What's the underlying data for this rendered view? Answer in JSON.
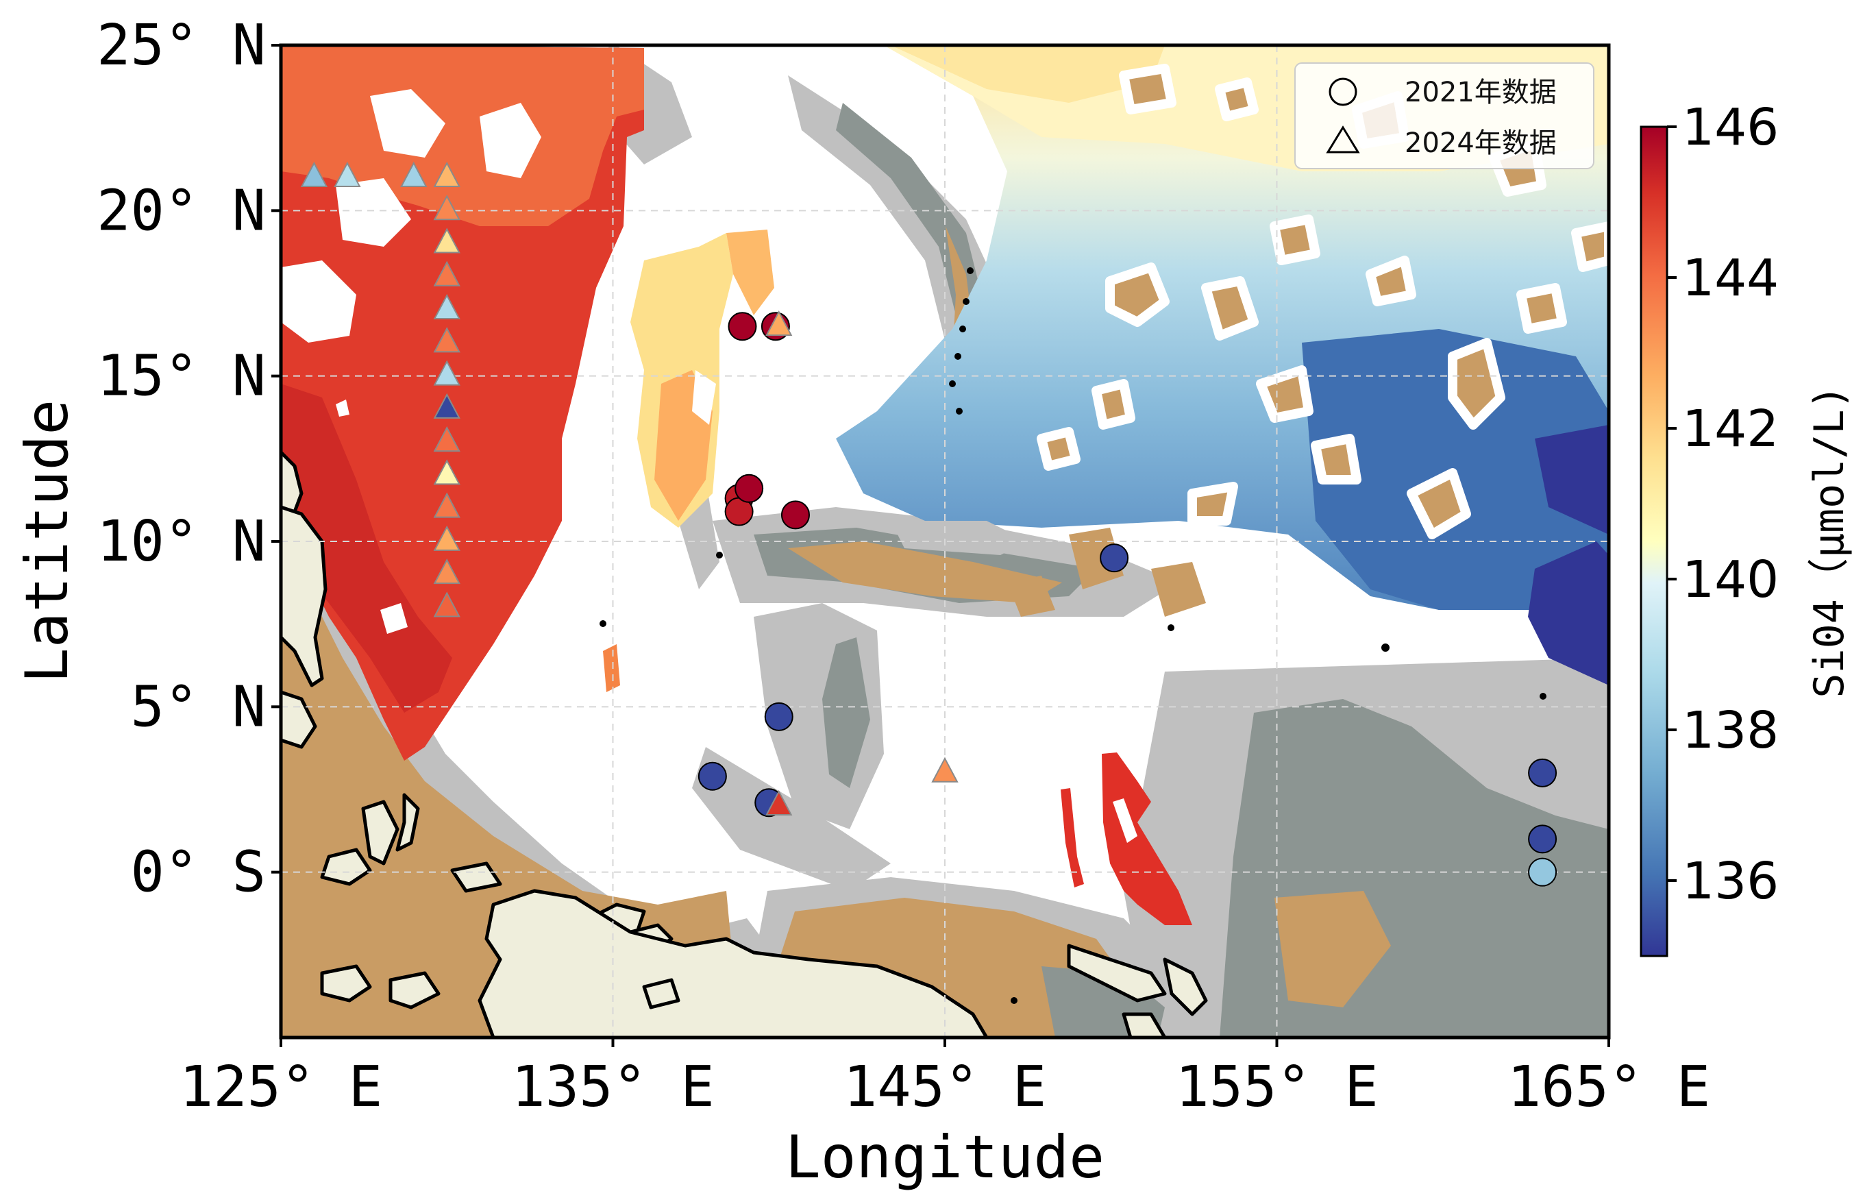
{
  "chart_data": {
    "type": "scatter",
    "xlabel": "Longitude",
    "ylabel": "Latitude",
    "xlim": [
      125,
      165
    ],
    "ylim": [
      -5,
      25
    ],
    "x_ticks": [
      {
        "value": 125,
        "label": "125° E"
      },
      {
        "value": 135,
        "label": "135° E"
      },
      {
        "value": 145,
        "label": "145° E"
      },
      {
        "value": 155,
        "label": "155° E"
      },
      {
        "value": 165,
        "label": "165° E"
      }
    ],
    "y_ticks": [
      {
        "value": 25,
        "label": "25° N"
      },
      {
        "value": 20,
        "label": "20° N"
      },
      {
        "value": 15,
        "label": "15° N"
      },
      {
        "value": 10,
        "label": "10° N"
      },
      {
        "value": 5,
        "label": "5° N"
      },
      {
        "value": 0,
        "label": "0° S"
      }
    ],
    "grid": true,
    "colorbar": {
      "label": "Si04（μmol/L)",
      "range": [
        135,
        146
      ],
      "ticks": [
        136,
        138,
        140,
        142,
        144,
        146
      ],
      "colormap": "RdYlBu_r"
    },
    "legend": {
      "position": "top-right",
      "entries": [
        {
          "marker": "circle",
          "label": "2021年数据"
        },
        {
          "marker": "triangle",
          "label": "2024年数据"
        }
      ]
    },
    "series": [
      {
        "name": "2021年数据",
        "marker": "circle",
        "points": [
          {
            "lon": 138.9,
            "lat": 16.5,
            "value": 146
          },
          {
            "lon": 139.9,
            "lat": 16.5,
            "value": 146
          },
          {
            "lon": 138.8,
            "lat": 11.3,
            "value": 145.5
          },
          {
            "lon": 138.8,
            "lat": 10.9,
            "value": 145.5
          },
          {
            "lon": 139.1,
            "lat": 11.6,
            "value": 146
          },
          {
            "lon": 140.5,
            "lat": 10.8,
            "value": 146
          },
          {
            "lon": 150.1,
            "lat": 9.5,
            "value": 135.3
          },
          {
            "lon": 140.0,
            "lat": 4.7,
            "value": 135.3
          },
          {
            "lon": 138.0,
            "lat": 2.9,
            "value": 135.3
          },
          {
            "lon": 139.7,
            "lat": 2.1,
            "value": 135.3
          },
          {
            "lon": 163.0,
            "lat": 3.0,
            "value": 135.3
          },
          {
            "lon": 163.0,
            "lat": 1.0,
            "value": 135.3
          },
          {
            "lon": 163.0,
            "lat": 0.0,
            "value": 138.2
          }
        ]
      },
      {
        "name": "2024年数据",
        "marker": "triangle",
        "points": [
          {
            "lon": 126.0,
            "lat": 21.0,
            "value": 138.0
          },
          {
            "lon": 127.0,
            "lat": 21.0,
            "value": 139.0
          },
          {
            "lon": 129.0,
            "lat": 21.0,
            "value": 138.5
          },
          {
            "lon": 130.0,
            "lat": 21.0,
            "value": 142.5
          },
          {
            "lon": 130.0,
            "lat": 20.0,
            "value": 143.5
          },
          {
            "lon": 130.0,
            "lat": 19.0,
            "value": 141.5
          },
          {
            "lon": 130.0,
            "lat": 18.0,
            "value": 143.8
          },
          {
            "lon": 130.0,
            "lat": 17.0,
            "value": 138.8
          },
          {
            "lon": 130.0,
            "lat": 16.0,
            "value": 143.8
          },
          {
            "lon": 130.0,
            "lat": 15.0,
            "value": 138.8
          },
          {
            "lon": 130.0,
            "lat": 14.0,
            "value": 135.3
          },
          {
            "lon": 130.0,
            "lat": 13.0,
            "value": 144.0
          },
          {
            "lon": 130.0,
            "lat": 12.0,
            "value": 140.8
          },
          {
            "lon": 130.0,
            "lat": 11.0,
            "value": 143.8
          },
          {
            "lon": 130.0,
            "lat": 10.0,
            "value": 142.7
          },
          {
            "lon": 130.0,
            "lat": 9.0,
            "value": 143.3
          },
          {
            "lon": 130.0,
            "lat": 8.0,
            "value": 144.2
          },
          {
            "lon": 140.0,
            "lat": 16.5,
            "value": 142.8
          },
          {
            "lon": 145.0,
            "lat": 3.0,
            "value": 143.3
          },
          {
            "lon": 140.0,
            "lat": 2.0,
            "value": 145.0
          }
        ]
      }
    ]
  }
}
